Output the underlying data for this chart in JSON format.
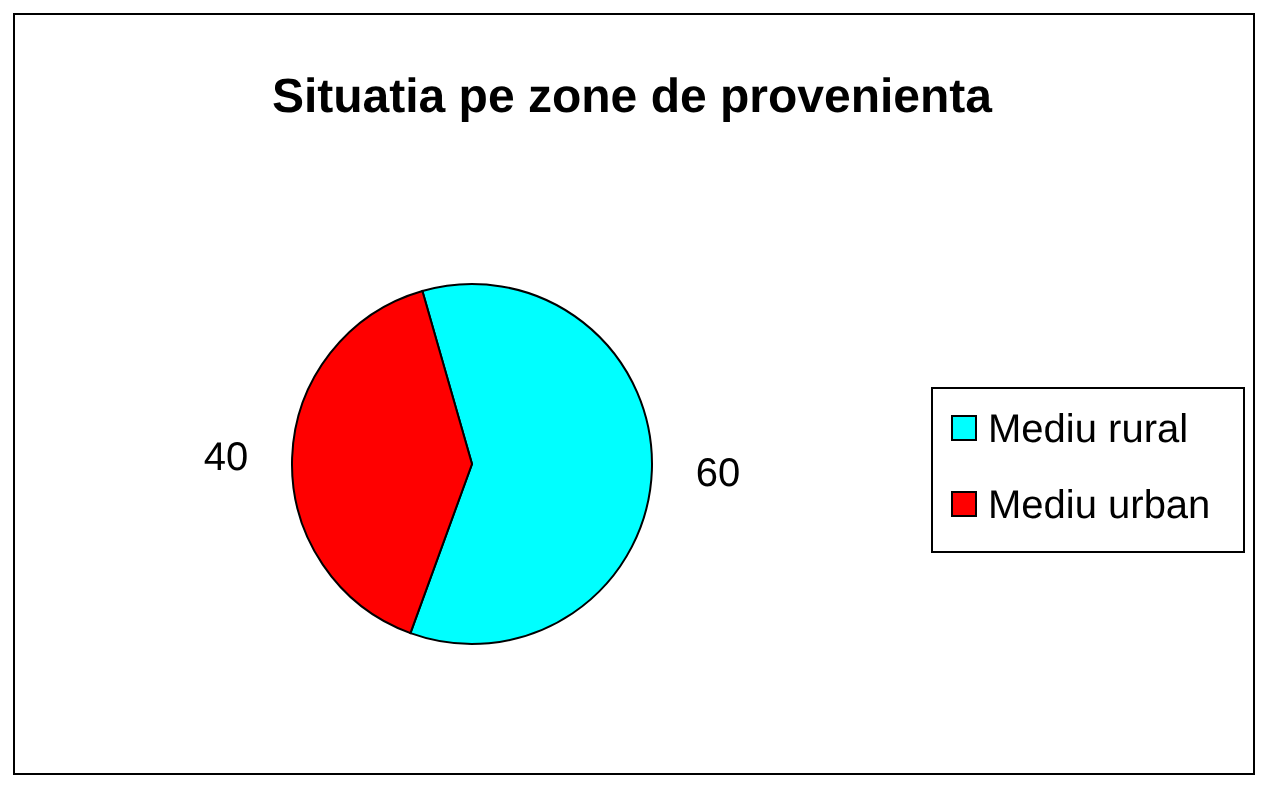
{
  "chart_data": {
    "type": "pie",
    "title": "Situatia pe zone de provenienta",
    "categories": [
      "Mediu rural",
      "Mediu urban"
    ],
    "values": [
      60,
      40
    ],
    "colors": [
      "#00ffff",
      "#ff0000"
    ],
    "data_labels": true,
    "legend": "right"
  }
}
